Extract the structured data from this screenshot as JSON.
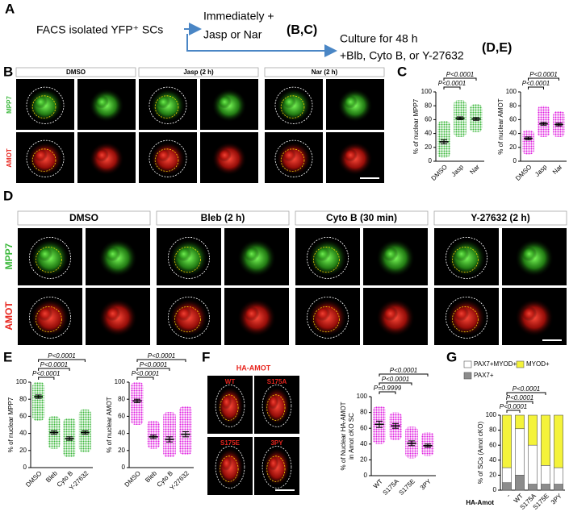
{
  "panel_letters": [
    "A",
    "B",
    "C",
    "D",
    "E",
    "F",
    "G"
  ],
  "scheme": {
    "source": "FACS isolated YFP⁺ SCs",
    "step1_lines": [
      "Immediately +",
      "Jasp or Nar"
    ],
    "step1_ref": "(B,C)",
    "step2_lines": [
      "Culture for 48 h",
      "+Blb, Cyto B, or Y-27632"
    ],
    "step2_ref": "(D,E)"
  },
  "panel_b": {
    "conditions": [
      "DMSO",
      "Jasp (2 h)",
      "Nar (2 h)"
    ],
    "channels": [
      "MPP7",
      "AMOT"
    ]
  },
  "panel_d": {
    "conditions": [
      "DMSO",
      "Bleb (2 h)",
      "Cyto B (30 min)",
      "Y-27632 (2 h)"
    ],
    "channels": [
      "MPP7",
      "AMOT"
    ]
  },
  "panel_f": {
    "title": "HA-AMOT",
    "variants": [
      "WT",
      "S175A",
      "S175E",
      "3PY"
    ]
  },
  "chart_data": [
    {
      "type": "strip",
      "ylabel": [
        "% of nuclear MPP7"
      ],
      "categories": [
        "DMSO",
        "Jasp",
        "Nar"
      ],
      "values": [
        28,
        62,
        61
      ],
      "errors": [
        3,
        2,
        2
      ],
      "min": [
        5,
        35,
        42
      ],
      "max": [
        58,
        88,
        82
      ],
      "color": "#3cb83c",
      "ylim": [
        0,
        100
      ],
      "yticks": [
        0,
        20,
        40,
        60,
        80,
        100
      ],
      "comparisons": [
        {
          "label": "P<0.0001",
          "groups": [
            "DMSO",
            "Jasp"
          ]
        },
        {
          "label": "P<0.0001",
          "groups": [
            "DMSO",
            "Nar"
          ]
        }
      ]
    },
    {
      "type": "strip",
      "ylabel": [
        "% of nuclear AMOT"
      ],
      "categories": [
        "DMSO",
        "Jasp",
        "Nar"
      ],
      "values": [
        33,
        54,
        53
      ],
      "errors": [
        2,
        2,
        2
      ],
      "min": [
        10,
        35,
        35
      ],
      "max": [
        45,
        80,
        72
      ],
      "color": "#e020e0",
      "ylim": [
        0,
        100
      ],
      "yticks": [
        0,
        20,
        40,
        60,
        80,
        100
      ],
      "comparisons": [
        {
          "label": "P<0.0001",
          "groups": [
            "DMSO",
            "Jasp"
          ]
        },
        {
          "label": "P<0.0001",
          "groups": [
            "DMSO",
            "Nar"
          ]
        }
      ]
    },
    {
      "type": "strip",
      "ylabel": [
        "% of nuclear MPP7"
      ],
      "categories": [
        "DMSO",
        "Bleb",
        "Cyto B",
        "Y-27632"
      ],
      "values": [
        83,
        41,
        34,
        41
      ],
      "errors": [
        2,
        2,
        2,
        2
      ],
      "min": [
        55,
        22,
        12,
        18
      ],
      "max": [
        100,
        60,
        58,
        68
      ],
      "color": "#3cb83c",
      "ylim": [
        0,
        100
      ],
      "yticks": [
        0,
        20,
        40,
        60,
        80,
        100
      ],
      "comparisons": [
        {
          "label": "P<0.0001",
          "groups": [
            "DMSO",
            "Bleb"
          ]
        },
        {
          "label": "P<0.0001",
          "groups": [
            "DMSO",
            "Cyto B"
          ]
        },
        {
          "label": "P<0.0001",
          "groups": [
            "DMSO",
            "Y-27632"
          ]
        }
      ]
    },
    {
      "type": "strip",
      "ylabel": [
        "% of nuclear AMOT"
      ],
      "categories": [
        "DMSO",
        "Bleb",
        "Cyto B",
        "Y-27632"
      ],
      "values": [
        78,
        36,
        33,
        39
      ],
      "errors": [
        2,
        2,
        3,
        3
      ],
      "min": [
        50,
        22,
        12,
        15
      ],
      "max": [
        100,
        55,
        65,
        72
      ],
      "color": "#e020e0",
      "ylim": [
        0,
        100
      ],
      "yticks": [
        0,
        20,
        40,
        60,
        80,
        100
      ],
      "comparisons": [
        {
          "label": "P<0.0001",
          "groups": [
            "DMSO",
            "Bleb"
          ]
        },
        {
          "label": "P<0.0001",
          "groups": [
            "DMSO",
            "Cyto B"
          ]
        },
        {
          "label": "P<0.0001",
          "groups": [
            "DMSO",
            "Y-27632"
          ]
        }
      ]
    },
    {
      "type": "strip",
      "ylabel": [
        "% of Nuclear HA-AMOT",
        "in Amot cKO SC"
      ],
      "categories": [
        "WT",
        "S175A",
        "S175E",
        "3PY"
      ],
      "values": [
        65,
        63,
        41,
        38
      ],
      "errors": [
        4,
        3,
        3,
        2
      ],
      "min": [
        40,
        45,
        22,
        25
      ],
      "max": [
        88,
        80,
        62,
        55
      ],
      "color": "#e020e0",
      "ylim": [
        0,
        100
      ],
      "yticks": [
        0,
        20,
        40,
        60,
        80,
        100
      ],
      "comparisons": [
        {
          "label": "P=0.9999",
          "groups": [
            "WT",
            "S175A"
          ]
        },
        {
          "label": "P<0.0001",
          "groups": [
            "WT",
            "S175E"
          ]
        },
        {
          "label": "P<0.0001",
          "groups": [
            "WT",
            "3PY"
          ]
        }
      ]
    },
    {
      "type": "bar",
      "stacked": true,
      "ylabel": [
        "% of SCs (Amot cKO)"
      ],
      "xlabel": "HA-Amot",
      "categories": [
        "-",
        "WT",
        "S175A",
        "S175E",
        "3PY"
      ],
      "series": [
        {
          "name": "PAX7+",
          "color": "#8c8c8c",
          "values": [
            10,
            20,
            8,
            8,
            8
          ]
        },
        {
          "name": "PAX7+MYOD+",
          "color": "#ffffff",
          "values": [
            20,
            62,
            52,
            25,
            22
          ]
        },
        {
          "name": "MYOD+",
          "color": "#f4f33a",
          "values": [
            70,
            18,
            40,
            67,
            70
          ]
        }
      ],
      "ylim": [
        0,
        100
      ],
      "yticks": [
        0,
        20,
        40,
        60,
        80,
        100
      ],
      "comparisons": [
        {
          "label": "P<0.0001",
          "groups": [
            "-",
            "WT"
          ]
        },
        {
          "label": "P<0.0001",
          "groups": [
            "-",
            "S175A"
          ]
        },
        {
          "label": "P<0.0001",
          "groups": [
            "-",
            "S175E"
          ]
        }
      ]
    }
  ]
}
